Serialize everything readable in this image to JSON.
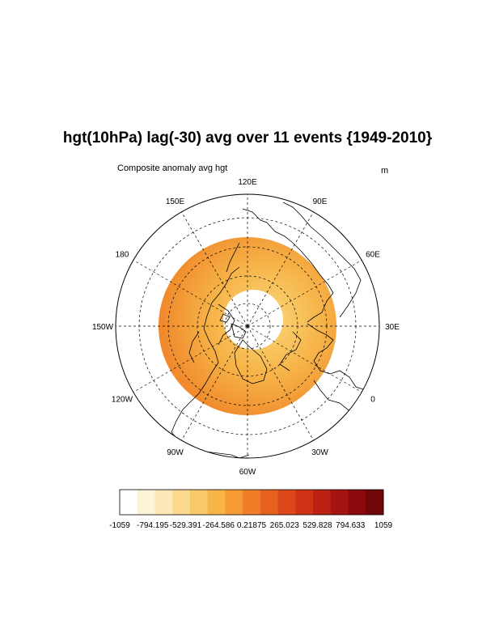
{
  "title": "hgt(10hPa) lag(-30) avg over 11 events {1949-2010}",
  "subtitle": "Composite anomaly avg hgt",
  "units": "m",
  "map": {
    "projection": "polar-stereographic-north",
    "fill_color_outer": "#f08a2c",
    "fill_color_center": "#f9c35a",
    "pole_hole_color": "#ffffff",
    "longitude_labels": [
      {
        "text": "120E",
        "lon": 120
      },
      {
        "text": "90E",
        "lon": 90
      },
      {
        "text": "60E",
        "lon": 60
      },
      {
        "text": "30E",
        "lon": 30
      },
      {
        "text": "0",
        "lon": 0
      },
      {
        "text": "30W",
        "lon": -30
      },
      {
        "text": "60W",
        "lon": -60
      },
      {
        "text": "90W",
        "lon": -90
      },
      {
        "text": "120W",
        "lon": -120
      },
      {
        "text": "150W",
        "lon": -150
      },
      {
        "text": "180",
        "lon": 180
      },
      {
        "text": "150E",
        "lon": 150
      }
    ]
  },
  "colorbar": {
    "labels": [
      "-1059",
      "-794.195",
      "-529.391",
      "-264.586",
      "0.21875",
      "265.023",
      "529.828",
      "794.633",
      "1059"
    ],
    "colors": [
      "#ffffff",
      "#fdf3d8",
      "#fce7b6",
      "#fbd98f",
      "#f9c969",
      "#f7b548",
      "#f59b34",
      "#f07e28",
      "#e8621f",
      "#dd481a",
      "#cf3316",
      "#bd2113",
      "#a51410",
      "#8c0a0d",
      "#720509"
    ]
  }
}
